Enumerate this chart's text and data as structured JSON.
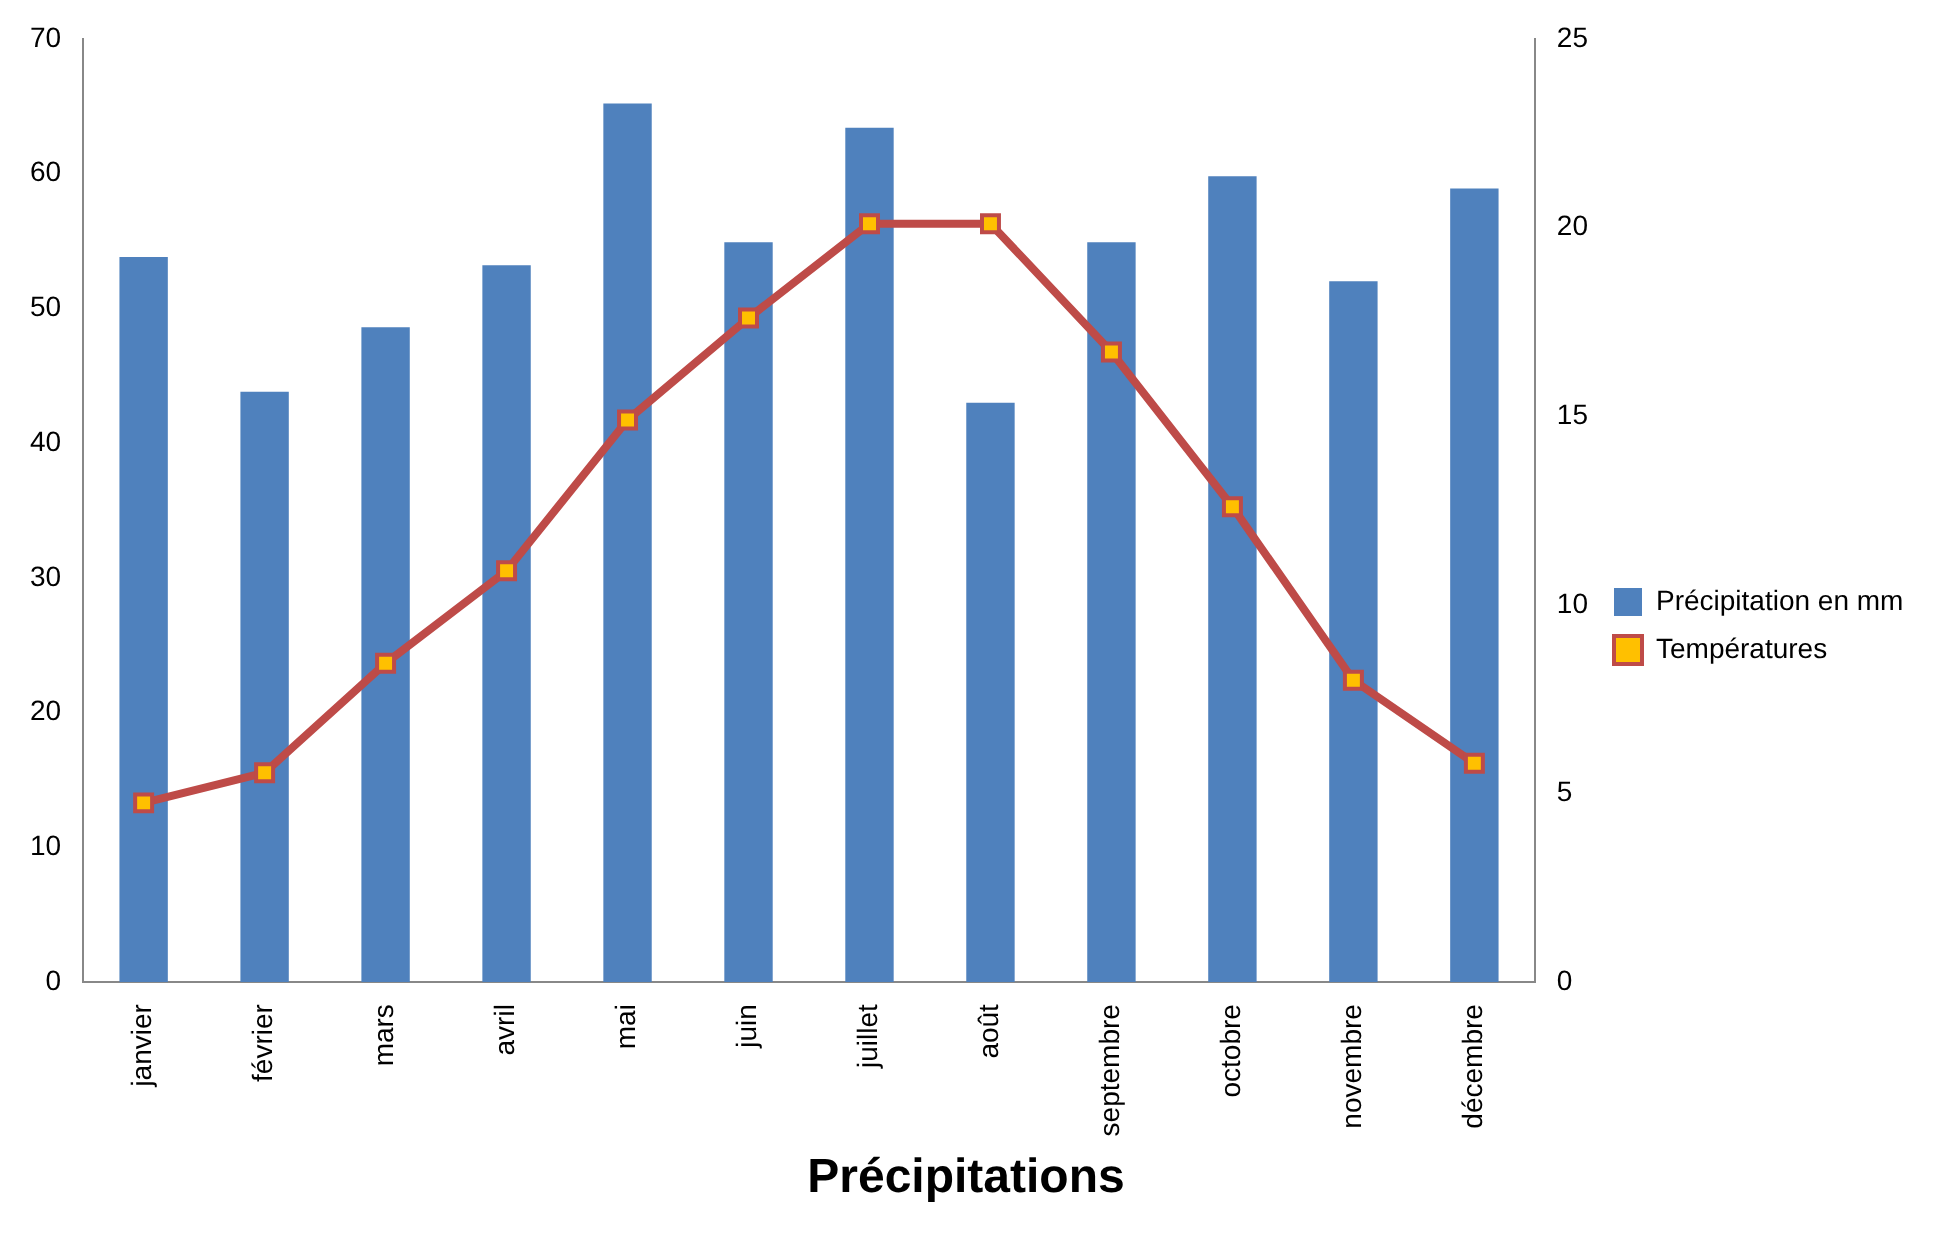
{
  "chart_data": {
    "type": "bar",
    "title": "Précipitations",
    "categories": [
      "janvier",
      "février",
      "mars",
      "avril",
      "mai",
      "juin",
      "juillet",
      "août",
      "septembre",
      "octobre",
      "novembre",
      "décembre"
    ],
    "series": [
      {
        "name": "Précipitation en mm",
        "color": "#4f81bd",
        "values": [
          53.8,
          43.8,
          48.6,
          53.2,
          65.2,
          54.9,
          63.4,
          43,
          54.9,
          59.8,
          52,
          58.9
        ]
      },
      {
        "name": "Températures",
        "type": "line",
        "axis": "y2",
        "color": "#be4b48",
        "marker": "square",
        "values": [
          4.75,
          5.55,
          8.45,
          10.9,
          14.9,
          17.6,
          20.1,
          20.1,
          16.7,
          12.6,
          8,
          5.8
        ]
      }
    ],
    "ylim": [
      0,
      70
    ],
    "yticks": [
      0,
      10,
      20,
      30,
      40,
      50,
      60,
      70
    ],
    "y2lim": [
      0,
      25
    ],
    "y2ticks": [
      0,
      5,
      10,
      15,
      20,
      25
    ],
    "grid": false,
    "legend": "right"
  }
}
